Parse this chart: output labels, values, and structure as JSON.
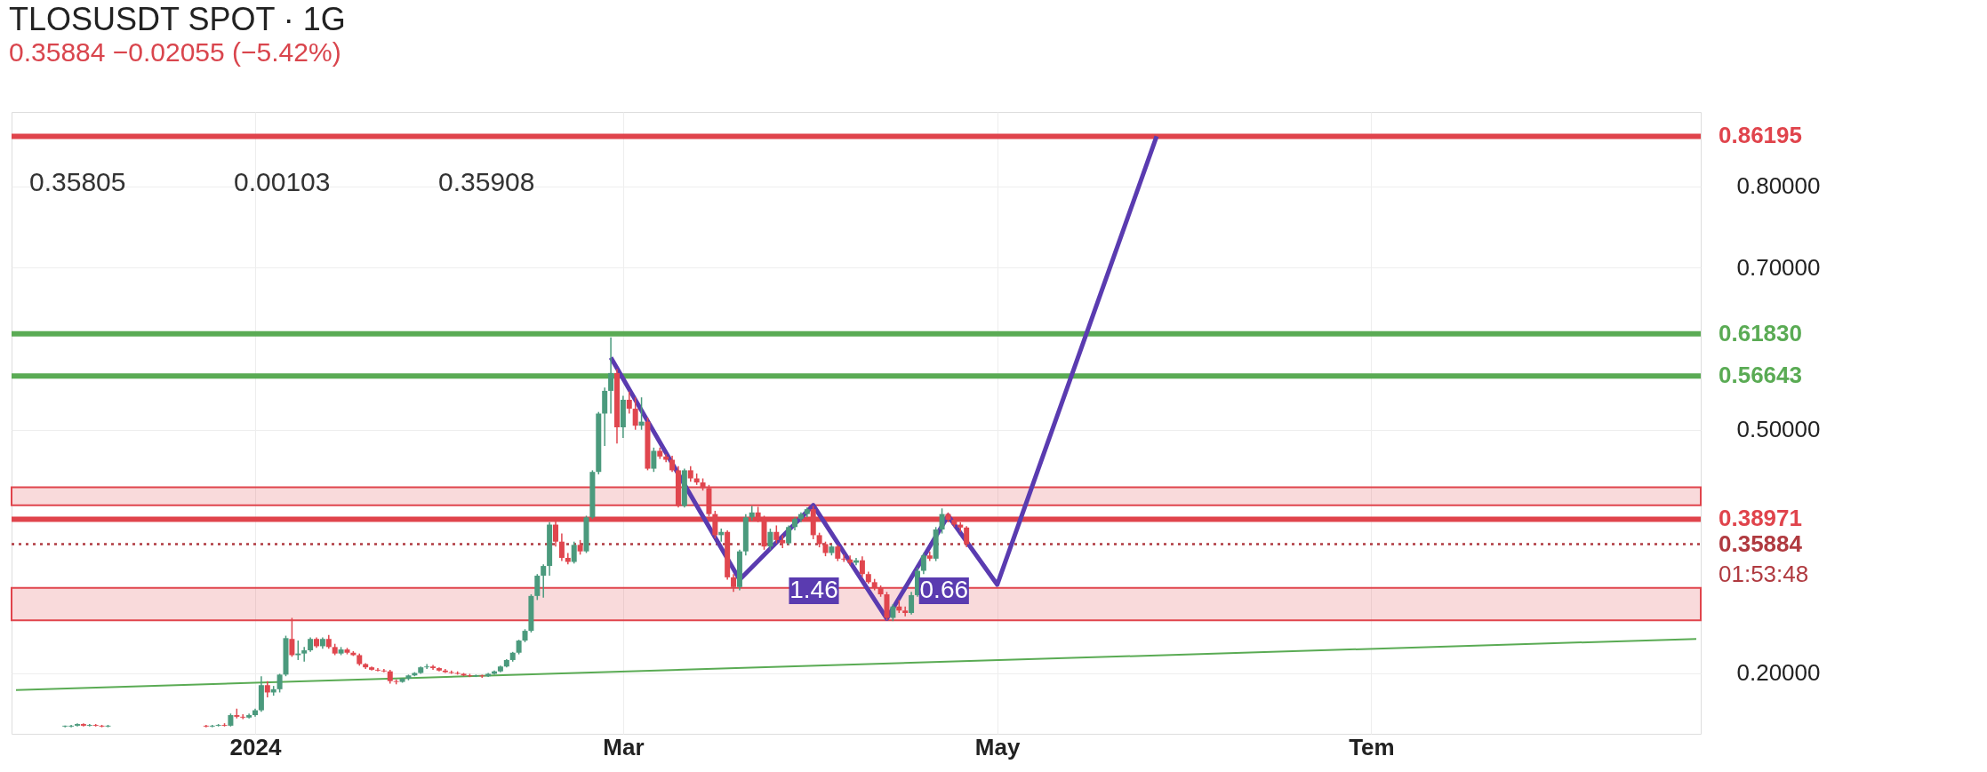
{
  "chart_data": {
    "type": "candlestick",
    "title": "TLOSUSDT SPOT · 1G",
    "subtitle": "0.35884 −0.02055 (−5.42%)",
    "x": [
      "2023-12-01",
      "2023-12-02",
      "2023-12-03",
      "2023-12-04",
      "2023-12-05",
      "2023-12-06",
      "2023-12-07",
      "2023-12-08",
      "2023-12-24",
      "2023-12-25",
      "2023-12-26",
      "2023-12-27",
      "2023-12-28",
      "2023-12-29",
      "2023-12-30",
      "2023-12-31",
      "2024-01-01",
      "2024-01-02",
      "2024-01-03",
      "2024-01-04",
      "2024-01-05",
      "2024-01-06",
      "2024-01-07",
      "2024-01-08",
      "2024-01-09",
      "2024-01-10",
      "2024-01-11",
      "2024-01-12",
      "2024-01-13",
      "2024-01-14",
      "2024-01-15",
      "2024-01-16",
      "2024-01-17",
      "2024-01-18",
      "2024-01-19",
      "2024-01-20",
      "2024-01-21",
      "2024-01-22",
      "2024-01-23",
      "2024-01-24",
      "2024-01-25",
      "2024-01-26",
      "2024-01-27",
      "2024-01-28",
      "2024-01-29",
      "2024-01-30",
      "2024-01-31",
      "2024-02-01",
      "2024-02-02",
      "2024-02-03",
      "2024-02-04",
      "2024-02-05",
      "2024-02-06",
      "2024-02-07",
      "2024-02-08",
      "2024-02-09",
      "2024-02-10",
      "2024-02-11",
      "2024-02-12",
      "2024-02-13",
      "2024-02-14",
      "2024-02-15",
      "2024-02-16",
      "2024-02-17",
      "2024-02-18",
      "2024-02-19",
      "2024-02-20",
      "2024-02-21",
      "2024-02-22",
      "2024-02-23",
      "2024-02-24",
      "2024-02-25",
      "2024-02-26",
      "2024-02-27",
      "2024-02-28",
      "2024-02-29",
      "2024-03-01",
      "2024-03-02",
      "2024-03-03",
      "2024-03-04",
      "2024-03-05",
      "2024-03-06",
      "2024-03-07",
      "2024-03-08",
      "2024-03-09",
      "2024-03-10",
      "2024-03-11",
      "2024-03-12",
      "2024-03-13",
      "2024-03-14",
      "2024-03-15",
      "2024-03-16",
      "2024-03-17",
      "2024-03-18",
      "2024-03-19",
      "2024-03-20",
      "2024-03-21",
      "2024-03-22",
      "2024-03-23",
      "2024-03-24",
      "2024-03-25",
      "2024-03-26",
      "2024-03-27",
      "2024-03-28",
      "2024-03-29",
      "2024-03-30",
      "2024-03-31",
      "2024-04-01",
      "2024-04-02",
      "2024-04-03",
      "2024-04-04",
      "2024-04-05",
      "2024-04-06",
      "2024-04-07",
      "2024-04-08",
      "2024-04-09",
      "2024-04-10",
      "2024-04-11",
      "2024-04-12",
      "2024-04-13",
      "2024-04-14",
      "2024-04-15",
      "2024-04-16",
      "2024-04-17",
      "2024-04-18",
      "2024-04-19",
      "2024-04-20",
      "2024-04-21",
      "2024-04-22",
      "2024-04-23",
      "2024-04-24",
      "2024-04-25",
      "2024-04-26"
    ],
    "ohlc": [
      [
        0.134,
        0.135,
        0.133,
        0.135
      ],
      [
        0.134,
        0.136,
        0.133,
        0.135
      ],
      [
        0.135,
        0.138,
        0.134,
        0.137
      ],
      [
        0.137,
        0.138,
        0.134,
        0.135
      ],
      [
        0.135,
        0.137,
        0.134,
        0.136
      ],
      [
        0.136,
        0.137,
        0.134,
        0.135
      ],
      [
        0.135,
        0.136,
        0.133,
        0.134
      ],
      [
        0.134,
        0.136,
        0.133,
        0.135
      ],
      [
        0.135,
        0.136,
        0.133,
        0.134
      ],
      [
        0.134,
        0.136,
        0.133,
        0.135
      ],
      [
        0.135,
        0.137,
        0.134,
        0.136
      ],
      [
        0.136,
        0.138,
        0.134,
        0.135
      ],
      [
        0.135,
        0.15,
        0.134,
        0.148
      ],
      [
        0.148,
        0.156,
        0.144,
        0.146
      ],
      [
        0.146,
        0.149,
        0.143,
        0.145
      ],
      [
        0.145,
        0.15,
        0.144,
        0.148
      ],
      [
        0.148,
        0.156,
        0.146,
        0.154
      ],
      [
        0.154,
        0.196,
        0.152,
        0.185
      ],
      [
        0.185,
        0.19,
        0.17,
        0.176
      ],
      [
        0.176,
        0.184,
        0.172,
        0.18
      ],
      [
        0.18,
        0.199,
        0.176,
        0.198
      ],
      [
        0.198,
        0.246,
        0.196,
        0.243
      ],
      [
        0.242,
        0.268,
        0.22,
        0.222
      ],
      [
        0.222,
        0.24,
        0.216,
        0.224
      ],
      [
        0.224,
        0.232,
        0.214,
        0.228
      ],
      [
        0.228,
        0.244,
        0.226,
        0.242
      ],
      [
        0.242,
        0.244,
        0.231,
        0.233
      ],
      [
        0.233,
        0.244,
        0.23,
        0.242
      ],
      [
        0.242,
        0.247,
        0.23,
        0.232
      ],
      [
        0.232,
        0.236,
        0.222,
        0.224
      ],
      [
        0.224,
        0.232,
        0.222,
        0.229
      ],
      [
        0.229,
        0.231,
        0.223,
        0.225
      ],
      [
        0.225,
        0.227,
        0.221,
        0.222
      ],
      [
        0.222,
        0.224,
        0.209,
        0.211
      ],
      [
        0.211,
        0.212,
        0.205,
        0.207
      ],
      [
        0.207,
        0.208,
        0.203,
        0.204
      ],
      [
        0.204,
        0.206,
        0.202,
        0.203
      ],
      [
        0.203,
        0.205,
        0.201,
        0.202
      ],
      [
        0.202,
        0.204,
        0.187,
        0.19
      ],
      [
        0.19,
        0.192,
        0.186,
        0.189
      ],
      [
        0.189,
        0.194,
        0.188,
        0.193
      ],
      [
        0.193,
        0.198,
        0.191,
        0.197
      ],
      [
        0.197,
        0.201,
        0.196,
        0.2
      ],
      [
        0.2,
        0.208,
        0.199,
        0.207
      ],
      [
        0.207,
        0.211,
        0.205,
        0.208
      ],
      [
        0.208,
        0.21,
        0.204,
        0.206
      ],
      [
        0.206,
        0.207,
        0.202,
        0.203
      ],
      [
        0.203,
        0.205,
        0.2,
        0.201
      ],
      [
        0.201,
        0.203,
        0.199,
        0.2
      ],
      [
        0.2,
        0.202,
        0.198,
        0.199
      ],
      [
        0.199,
        0.2,
        0.196,
        0.197
      ],
      [
        0.197,
        0.199,
        0.195,
        0.196
      ],
      [
        0.196,
        0.198,
        0.195,
        0.197
      ],
      [
        0.197,
        0.198,
        0.194,
        0.196
      ],
      [
        0.196,
        0.2,
        0.195,
        0.199
      ],
      [
        0.199,
        0.203,
        0.198,
        0.202
      ],
      [
        0.202,
        0.209,
        0.201,
        0.208
      ],
      [
        0.208,
        0.217,
        0.207,
        0.216
      ],
      [
        0.216,
        0.226,
        0.214,
        0.225
      ],
      [
        0.225,
        0.241,
        0.223,
        0.24
      ],
      [
        0.24,
        0.254,
        0.238,
        0.252
      ],
      [
        0.252,
        0.297,
        0.25,
        0.295
      ],
      [
        0.295,
        0.322,
        0.29,
        0.32
      ],
      [
        0.32,
        0.334,
        0.293,
        0.332
      ],
      [
        0.332,
        0.386,
        0.32,
        0.383
      ],
      [
        0.383,
        0.388,
        0.356,
        0.362
      ],
      [
        0.362,
        0.372,
        0.338,
        0.342
      ],
      [
        0.342,
        0.348,
        0.334,
        0.337
      ],
      [
        0.337,
        0.362,
        0.335,
        0.358
      ],
      [
        0.358,
        0.364,
        0.346,
        0.35
      ],
      [
        0.35,
        0.394,
        0.348,
        0.392
      ],
      [
        0.392,
        0.45,
        0.39,
        0.448
      ],
      [
        0.448,
        0.522,
        0.445,
        0.52
      ],
      [
        0.52,
        0.552,
        0.48,
        0.548
      ],
      [
        0.548,
        0.614,
        0.52,
        0.57
      ],
      [
        0.57,
        0.575,
        0.483,
        0.503
      ],
      [
        0.503,
        0.542,
        0.49,
        0.537
      ],
      [
        0.537,
        0.547,
        0.52,
        0.526
      ],
      [
        0.526,
        0.54,
        0.5,
        0.505
      ],
      [
        0.505,
        0.54,
        0.5,
        0.51
      ],
      [
        0.51,
        0.515,
        0.45,
        0.452
      ],
      [
        0.452,
        0.478,
        0.448,
        0.474
      ],
      [
        0.474,
        0.478,
        0.464,
        0.467
      ],
      [
        0.467,
        0.47,
        0.46,
        0.463
      ],
      [
        0.463,
        0.468,
        0.448,
        0.45
      ],
      [
        0.45,
        0.455,
        0.404,
        0.406
      ],
      [
        0.406,
        0.452,
        0.404,
        0.45
      ],
      [
        0.45,
        0.455,
        0.436,
        0.44
      ],
      [
        0.44,
        0.446,
        0.432,
        0.435
      ],
      [
        0.435,
        0.44,
        0.425,
        0.428
      ],
      [
        0.428,
        0.432,
        0.393,
        0.396
      ],
      [
        0.396,
        0.4,
        0.366,
        0.37
      ],
      [
        0.37,
        0.378,
        0.362,
        0.374
      ],
      [
        0.374,
        0.376,
        0.315,
        0.318
      ],
      [
        0.318,
        0.322,
        0.3,
        0.306
      ],
      [
        0.306,
        0.352,
        0.302,
        0.35
      ],
      [
        0.35,
        0.396,
        0.345,
        0.392
      ],
      [
        0.392,
        0.406,
        0.388,
        0.398
      ],
      [
        0.398,
        0.405,
        0.386,
        0.39
      ],
      [
        0.39,
        0.394,
        0.352,
        0.356
      ],
      [
        0.356,
        0.378,
        0.352,
        0.374
      ],
      [
        0.374,
        0.382,
        0.36,
        0.364
      ],
      [
        0.364,
        0.37,
        0.354,
        0.36
      ],
      [
        0.36,
        0.382,
        0.358,
        0.38
      ],
      [
        0.38,
        0.392,
        0.376,
        0.39
      ],
      [
        0.39,
        0.398,
        0.386,
        0.396
      ],
      [
        0.396,
        0.404,
        0.392,
        0.402
      ],
      [
        0.402,
        0.406,
        0.365,
        0.37
      ],
      [
        0.37,
        0.373,
        0.355,
        0.359
      ],
      [
        0.359,
        0.362,
        0.344,
        0.348
      ],
      [
        0.348,
        0.358,
        0.345,
        0.356
      ],
      [
        0.356,
        0.358,
        0.338,
        0.341
      ],
      [
        0.341,
        0.346,
        0.337,
        0.34
      ],
      [
        0.34,
        0.345,
        0.333,
        0.336
      ],
      [
        0.336,
        0.342,
        0.333,
        0.339
      ],
      [
        0.339,
        0.344,
        0.318,
        0.322
      ],
      [
        0.322,
        0.325,
        0.31,
        0.312
      ],
      [
        0.312,
        0.316,
        0.302,
        0.305
      ],
      [
        0.305,
        0.308,
        0.294,
        0.297
      ],
      [
        0.297,
        0.3,
        0.265,
        0.268
      ],
      [
        0.268,
        0.285,
        0.264,
        0.282
      ],
      [
        0.282,
        0.29,
        0.274,
        0.277
      ],
      [
        0.277,
        0.282,
        0.27,
        0.274
      ],
      [
        0.274,
        0.3,
        0.272,
        0.296
      ],
      [
        0.296,
        0.33,
        0.294,
        0.326
      ],
      [
        0.326,
        0.348,
        0.322,
        0.345
      ],
      [
        0.345,
        0.35,
        0.338,
        0.341
      ],
      [
        0.341,
        0.38,
        0.338,
        0.377
      ],
      [
        0.377,
        0.403,
        0.372,
        0.396
      ],
      [
        0.396,
        0.398,
        0.386,
        0.389
      ],
      [
        0.389,
        0.392,
        0.38,
        0.383
      ],
      [
        0.383,
        0.386,
        0.374,
        0.37939
      ],
      [
        0.37939,
        0.381,
        0.355,
        0.35884
      ]
    ],
    "series": [
      {
        "type": "line",
        "color": "#5a3bb0",
        "x": [
          "2024-02-28",
          "2024-03-20",
          "2024-04-01",
          "2024-04-13",
          "2024-04-23",
          "2024-05-01",
          "2024-05-27"
        ],
        "values": [
          0.589,
          0.315,
          0.407,
          0.267,
          0.394,
          0.309,
          0.862
        ]
      },
      {
        "type": "line",
        "color": "#5aab54",
        "x": [
          "2023-11-23",
          "2024-08-23"
        ],
        "values": [
          0.179,
          0.242
        ]
      }
    ],
    "ref_lines": [
      {
        "axis": "y",
        "value": 0.86195,
        "label": "0.86195",
        "color": "#e0444c",
        "line_style": "solid"
      },
      {
        "axis": "y",
        "value": 0.6183,
        "label": "0.61830",
        "color": "#5aab54",
        "line_style": "solid"
      },
      {
        "axis": "y",
        "value": 0.56643,
        "label": "0.56643",
        "color": "#5aab54",
        "line_style": "solid"
      },
      {
        "axis": "y",
        "value": 0.38971,
        "label": "0.38971",
        "color": "#e0444c",
        "line_style": "solid"
      },
      {
        "axis": "y",
        "value": 0.35884,
        "label": "0.35884",
        "color": "#b03a40",
        "line_style": "dotted"
      }
    ],
    "bands": [
      {
        "axis": "y",
        "from": 0.407,
        "to": 0.429,
        "color": "#e0444c"
      },
      {
        "axis": "y",
        "from": 0.265,
        "to": 0.305,
        "color": "#e0444c"
      }
    ],
    "annotations": [
      "0.35805",
      "0.00103",
      "0.35908",
      "01:53:48",
      "1.46",
      "0.66"
    ],
    "xlim": [
      "2023-11-23",
      "2024-08-23"
    ],
    "xticks": [
      {
        "value": "2024-01-01",
        "label": "2024"
      },
      {
        "value": "2024-03-01",
        "label": "Mar"
      },
      {
        "value": "2024-05-01",
        "label": "May"
      },
      {
        "value": "2024-07-01",
        "label": "Tem"
      }
    ],
    "ylim": [
      0.125,
      0.892
    ],
    "yticks": [
      {
        "value": 0.2,
        "label": "0.20000"
      },
      {
        "value": 0.5,
        "label": "0.50000"
      },
      {
        "value": 0.7,
        "label": "0.70000"
      },
      {
        "value": 0.8,
        "label": "0.80000"
      }
    ],
    "grid": true
  }
}
